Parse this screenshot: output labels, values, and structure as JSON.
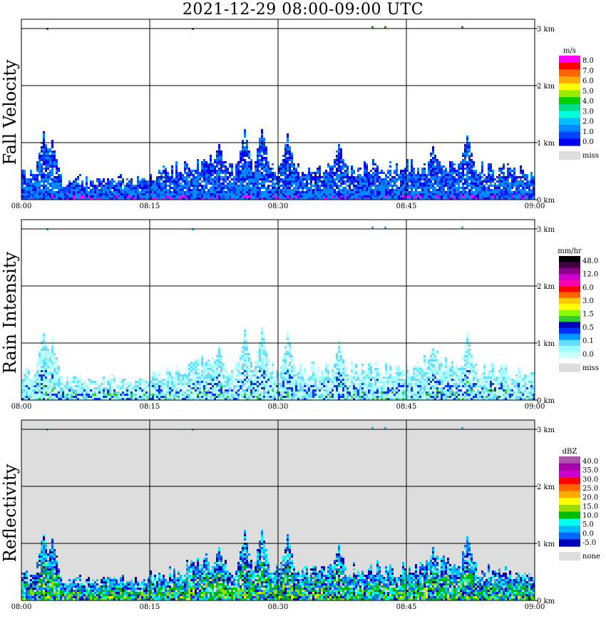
{
  "title": "2021-12-29   08:00-09:00 UTC",
  "chart_data": [
    {
      "type": "heatmap",
      "ylabel": "Fall Velocity",
      "unit": "m/s",
      "x_ticks": [
        "08:00",
        "08:15",
        "08:30",
        "08:45",
        "09:00"
      ],
      "y_ticks": [
        "0 km",
        "1 km",
        "2 km",
        "3 km"
      ],
      "background": "#ffffff",
      "colorbar": {
        "colors": [
          "#ff00ff",
          "#ff0000",
          "#ff6600",
          "#ffaa00",
          "#ffff00",
          "#99ee00",
          "#00cc00",
          "#00dd88",
          "#00ffdd",
          "#00bbff",
          "#0088ff",
          "#0044ff",
          "#0000ee"
        ],
        "labels": [
          "8.0",
          "7.0",
          "6.0",
          "5.0",
          "4.0",
          "3.0",
          "2.0",
          "1.0",
          "0.0"
        ],
        "missing_label": "miss"
      },
      "profile": {
        "base_layer_km": [
          0.45,
          0.45,
          0.4,
          0.35,
          0.3,
          0.3,
          0.35,
          0.3,
          0.3,
          0.3,
          0.35,
          0.35,
          0.3,
          0.3,
          0.3,
          0.4,
          0.45,
          0.45,
          0.5,
          0.55,
          0.6,
          0.7,
          0.6,
          0.55,
          0.5,
          0.55,
          0.5,
          0.5,
          0.5,
          0.5,
          0.5,
          0.5,
          0.5,
          0.5,
          0.5,
          0.5,
          0.5,
          0.5,
          0.5,
          0.5,
          0.55,
          0.55,
          0.5,
          0.5,
          0.5,
          0.55,
          0.55,
          0.6,
          0.65,
          0.6,
          0.55,
          0.5,
          0.5,
          0.5,
          0.5,
          0.5,
          0.5,
          0.45,
          0.45,
          0.4
        ],
        "plume_tops_km": [
          {
            "min": 2.5,
            "top": 1.15
          },
          {
            "min": 3.5,
            "top": 1.0
          },
          {
            "min": 23,
            "top": 0.9
          },
          {
            "min": 26,
            "top": 1.15
          },
          {
            "min": 28,
            "top": 1.2
          },
          {
            "min": 31,
            "top": 1.1
          },
          {
            "min": 37,
            "top": 0.95
          },
          {
            "min": 48,
            "top": 0.9
          },
          {
            "min": 52,
            "top": 1.1
          }
        ],
        "sparse_points": [
          {
            "min": 3,
            "km": 3.0
          },
          {
            "min": 20,
            "km": 3.0
          },
          {
            "min": 41,
            "km": 3.03
          },
          {
            "min": 42.5,
            "km": 3.03
          },
          {
            "min": 51.5,
            "km": 3.03
          }
        ]
      }
    },
    {
      "type": "heatmap",
      "ylabel": "Rain Intensity",
      "unit": "mm/hr",
      "x_ticks": [
        "08:00",
        "08:15",
        "08:30",
        "08:45",
        "09:00"
      ],
      "y_ticks": [
        "0 km",
        "1 km",
        "2 km",
        "3 km"
      ],
      "background": "#ffffff",
      "colorbar": {
        "colors": [
          "#000000",
          "#440044",
          "#880088",
          "#cc00cc",
          "#ff00aa",
          "#ff0000",
          "#ff6600",
          "#ffcc00",
          "#ffff00",
          "#88ff00",
          "#33cc33",
          "#0000bb",
          "#0033ff",
          "#0099ff",
          "#66ddff",
          "#99ffff",
          "#ccffff"
        ],
        "labels": [
          "48.0",
          "12.0",
          "6.0",
          "3.0",
          "1.5",
          "0.5",
          "0.1",
          "0.0"
        ],
        "missing_label": "miss"
      }
    },
    {
      "type": "heatmap",
      "ylabel": "Reflectivity",
      "unit": "dBZ",
      "x_ticks": [
        "08:00",
        "08:15",
        "08:30",
        "08:45",
        "09:00"
      ],
      "y_ticks": [
        "0 km",
        "1 km",
        "2 km",
        "3 km"
      ],
      "background": "#dddddd",
      "colorbar": {
        "colors": [
          "#aa55aa",
          "#aa00aa",
          "#cc00cc",
          "#ff0000",
          "#ff6600",
          "#ffaa00",
          "#ffff00",
          "#99dd00",
          "#00bb00",
          "#00ffee",
          "#00bbff",
          "#0066ff",
          "#0000bb"
        ],
        "labels": [
          "40.0",
          "35.0",
          "30.0",
          "25.0",
          "20.0",
          "15.0",
          "10.0",
          "5.0",
          "0.0",
          "-5.0"
        ],
        "missing_label": "none"
      }
    }
  ]
}
